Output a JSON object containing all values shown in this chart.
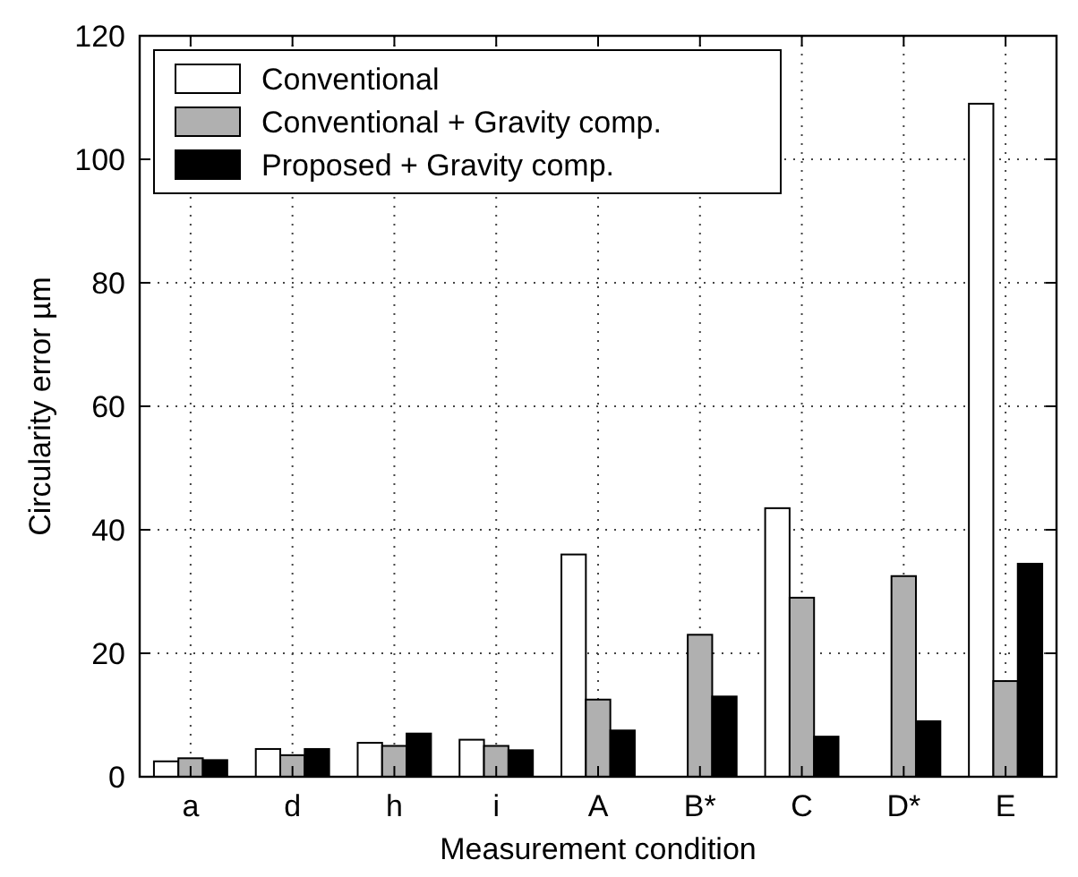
{
  "chart_data": {
    "type": "bar",
    "xlabel": "Measurement condition",
    "ylabel": "Circularity error   µm",
    "categories": [
      "a",
      "d",
      "h",
      "i",
      "A",
      "B*",
      "C",
      "D*",
      "E"
    ],
    "series": [
      {
        "name": "Conventional",
        "color": "#ffffff",
        "values": [
          2.5,
          4.5,
          5.5,
          6,
          36,
          null,
          43.5,
          null,
          109
        ]
      },
      {
        "name": "Conventional + Gravity comp.",
        "color": "#b0b0b0",
        "values": [
          3,
          3.5,
          5,
          5,
          12.5,
          23,
          29,
          32.5,
          15.5
        ]
      },
      {
        "name": "Proposed + Gravity comp.",
        "color": "#000000",
        "values": [
          2.7,
          4.5,
          7,
          4.3,
          7.5,
          13,
          6.5,
          9,
          34.5
        ]
      }
    ],
    "ylim": [
      0,
      120
    ],
    "yticks": [
      0,
      20,
      40,
      60,
      80,
      100,
      120
    ],
    "grid": true,
    "legend": "top left"
  }
}
